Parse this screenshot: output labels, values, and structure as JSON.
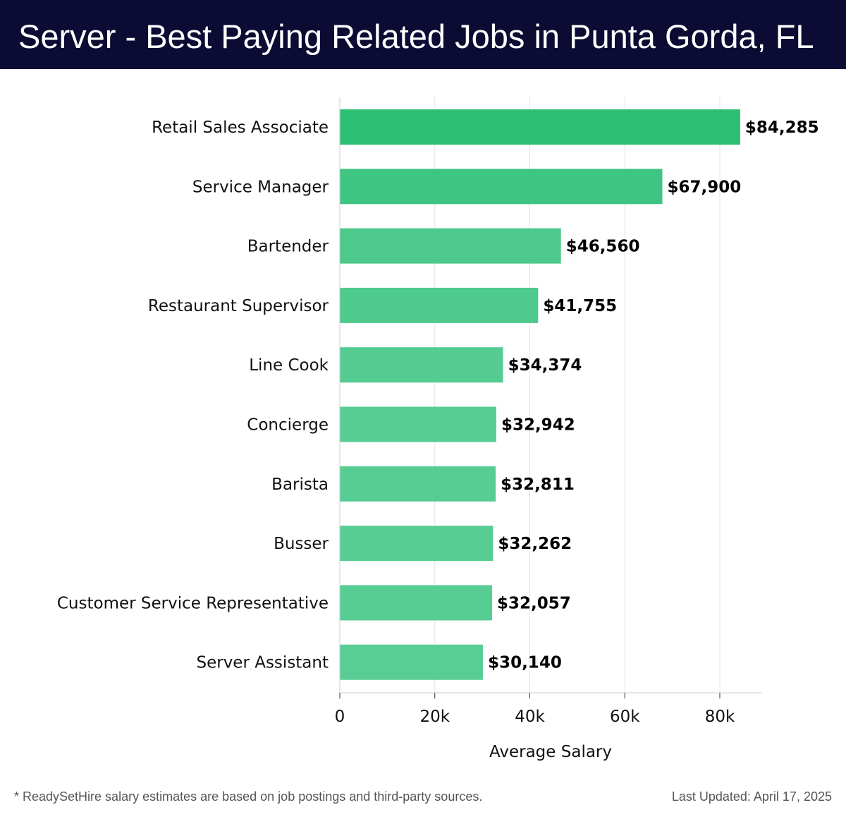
{
  "header": {
    "title": "Server - Best Paying Related Jobs in Punta Gorda, FL"
  },
  "chart_data": {
    "type": "bar",
    "orientation": "horizontal",
    "title": "Server - Best Paying Related Jobs in Punta Gorda, FL",
    "categories": [
      "Retail Sales Associate",
      "Service Manager",
      "Bartender",
      "Restaurant Supervisor",
      "Line Cook",
      "Concierge",
      "Barista",
      "Busser",
      "Customer Service Representative",
      "Server Assistant"
    ],
    "values": [
      84285,
      67900,
      46560,
      41755,
      34374,
      32942,
      32811,
      32262,
      32057,
      30140
    ],
    "value_labels": [
      "$84,285",
      "$67,900",
      "$46,560",
      "$41,755",
      "$34,374",
      "$32,942",
      "$32,811",
      "$32,262",
      "$32,057",
      "$30,140"
    ],
    "xlabel": "Average Salary",
    "ylabel": "",
    "xlim": [
      0,
      88000
    ],
    "xticks": [
      0,
      20000,
      40000,
      60000,
      80000
    ],
    "xtick_labels": [
      "0",
      "20k",
      "40k",
      "60k",
      "80k"
    ],
    "grid": true,
    "bar_colors": [
      "#2bbf73",
      "#3ec582",
      "#4cc98b",
      "#4fca8d",
      "#55cc91",
      "#56cd93",
      "#56cd93",
      "#57cd93",
      "#57cd94",
      "#58ce95"
    ]
  },
  "footer": {
    "note": "* ReadySetHire salary estimates are based on job postings and third-party sources.",
    "updated": "Last Updated: April 17, 2025"
  }
}
